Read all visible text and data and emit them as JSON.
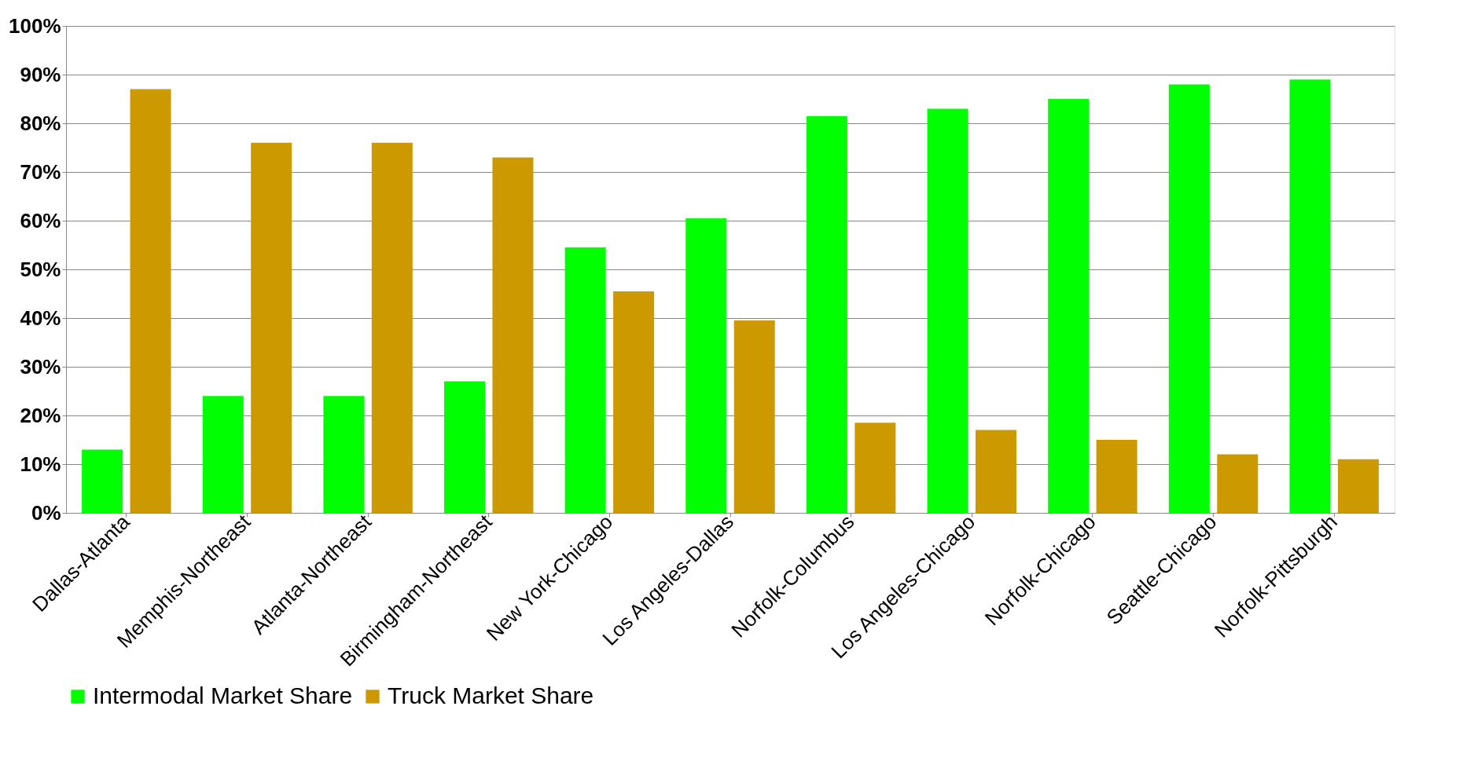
{
  "chart_data": {
    "type": "bar",
    "categories": [
      "Dallas-Atlanta",
      "Memphis-Northeast",
      "Atlanta-Northeast",
      "Birmingham-Northeast",
      "New York-Chicago",
      "Los Angeles-Dallas",
      "Norfolk-Columbus",
      "Los Angeles-Chicago",
      "Norfolk-Chicago",
      "Seattle-Chicago",
      "Norfolk-Pittsburgh"
    ],
    "series": [
      {
        "name": "Intermodal Market Share",
        "color": "#00ff00",
        "values": [
          13,
          24,
          24,
          27,
          54.5,
          60.5,
          81.5,
          83,
          85,
          88,
          89
        ]
      },
      {
        "name": "Truck Market Share",
        "color": "#cc9900",
        "values": [
          87,
          76,
          76,
          73,
          45.5,
          39.5,
          18.5,
          17,
          15,
          12,
          11
        ]
      }
    ],
    "ylim": [
      0,
      100
    ],
    "yticks": [
      {
        "value": 0,
        "label": "0%"
      },
      {
        "value": 10,
        "label": "10%"
      },
      {
        "value": 20,
        "label": "20%"
      },
      {
        "value": 30,
        "label": "30%"
      },
      {
        "value": 40,
        "label": "40%"
      },
      {
        "value": 50,
        "label": "50%"
      },
      {
        "value": 60,
        "label": "60%"
      },
      {
        "value": 70,
        "label": "70%"
      },
      {
        "value": 80,
        "label": "80%"
      },
      {
        "value": 90,
        "label": "90%"
      },
      {
        "value": 100,
        "label": "100%"
      }
    ],
    "grid": "y",
    "legend": "bottom"
  }
}
